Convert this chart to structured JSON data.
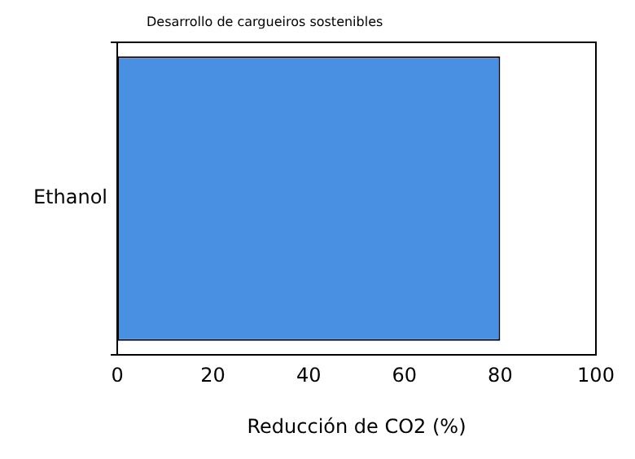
{
  "chart_data": {
    "type": "bar",
    "orientation": "horizontal",
    "title": "Desarrollo de cargueiros sostenibles",
    "xlabel": "Reducción de CO2 (%)",
    "categories": [
      "Ethanol"
    ],
    "values": [
      80
    ],
    "color": "#4a90e2",
    "xlim": [
      0,
      100
    ],
    "xticks": [
      0,
      20,
      40,
      60,
      80,
      100
    ],
    "grid": false,
    "legend": false
  }
}
